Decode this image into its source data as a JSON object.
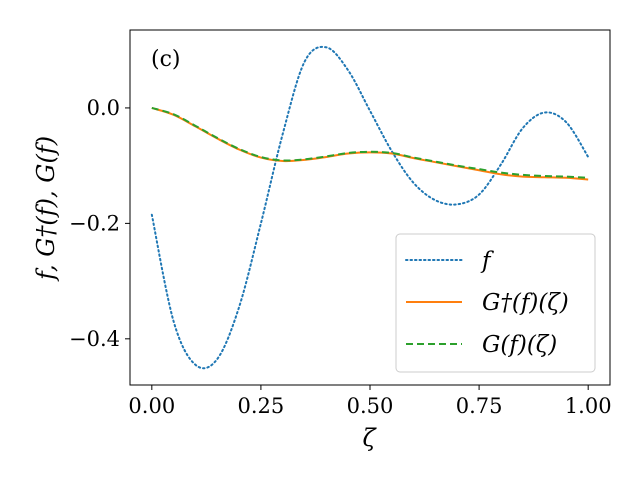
{
  "chart_data": {
    "type": "line",
    "panel_label": "(c)",
    "xlabel": "ζ",
    "ylabel": "f, G†(f), G(f)",
    "xlim": [
      -0.05,
      1.05
    ],
    "ylim": [
      -0.48,
      0.135
    ],
    "x_ticks": [
      0.0,
      0.25,
      0.5,
      0.75,
      1.0
    ],
    "x_tick_labels": [
      "0.00",
      "0.25",
      "0.50",
      "0.75",
      "1.00"
    ],
    "y_ticks": [
      0.0,
      -0.2,
      -0.4
    ],
    "y_tick_labels": [
      "0.0",
      "−0.2",
      "−0.4"
    ],
    "grid": false,
    "legend_position": "bottom-right",
    "series": [
      {
        "name": "f",
        "style": "dotted",
        "color": "#1f77b4",
        "x": [
          0.0,
          0.05,
          0.1,
          0.15,
          0.2,
          0.25,
          0.3,
          0.35,
          0.4,
          0.45,
          0.5,
          0.55,
          0.6,
          0.65,
          0.7,
          0.75,
          0.8,
          0.85,
          0.9,
          0.95,
          1.0
        ],
        "y": [
          -0.185,
          -0.37,
          -0.445,
          -0.435,
          -0.345,
          -0.2,
          -0.045,
          0.08,
          0.105,
          0.065,
          -0.005,
          -0.075,
          -0.13,
          -0.16,
          -0.167,
          -0.15,
          -0.098,
          -0.035,
          -0.008,
          -0.025,
          -0.085
        ]
      },
      {
        "name": "G†(f)(ζ)",
        "style": "solid",
        "color": "#ff7f0e",
        "x": [
          0.0,
          0.05,
          0.1,
          0.15,
          0.2,
          0.25,
          0.3,
          0.35,
          0.4,
          0.45,
          0.5,
          0.55,
          0.6,
          0.65,
          0.7,
          0.75,
          0.8,
          0.85,
          0.9,
          0.95,
          1.0
        ],
        "y": [
          0.0,
          -0.012,
          -0.032,
          -0.053,
          -0.072,
          -0.086,
          -0.092,
          -0.09,
          -0.085,
          -0.079,
          -0.077,
          -0.079,
          -0.087,
          -0.094,
          -0.101,
          -0.108,
          -0.115,
          -0.119,
          -0.12,
          -0.121,
          -0.124
        ]
      },
      {
        "name": "G(f)(ζ)",
        "style": "dashed",
        "color": "#2ca02c",
        "x": [
          0.0,
          0.05,
          0.1,
          0.15,
          0.2,
          0.25,
          0.3,
          0.35,
          0.4,
          0.45,
          0.5,
          0.55,
          0.6,
          0.65,
          0.7,
          0.75,
          0.8,
          0.85,
          0.9,
          0.95,
          1.0
        ],
        "y": [
          0.0,
          -0.011,
          -0.031,
          -0.052,
          -0.071,
          -0.085,
          -0.091,
          -0.089,
          -0.084,
          -0.078,
          -0.076,
          -0.078,
          -0.086,
          -0.093,
          -0.1,
          -0.106,
          -0.112,
          -0.116,
          -0.118,
          -0.119,
          -0.121
        ]
      }
    ]
  }
}
